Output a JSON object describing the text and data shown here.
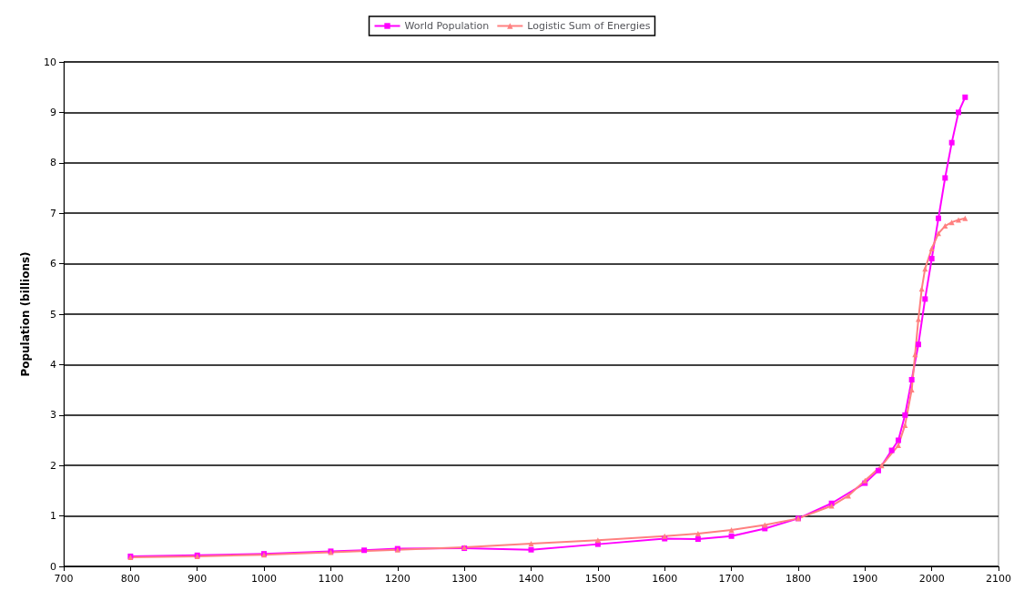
{
  "chart_data": {
    "type": "line",
    "ylabel": "Population (billions)",
    "xlim": [
      700,
      2100
    ],
    "xticks": [
      700,
      800,
      900,
      1000,
      1100,
      1200,
      1300,
      1400,
      1500,
      1600,
      1700,
      1800,
      1900,
      2000,
      2100
    ],
    "ylim": [
      0,
      10
    ],
    "yticks": [
      0,
      1,
      2,
      3,
      4,
      5,
      6,
      7,
      8,
      9,
      10
    ],
    "grid": "y",
    "legend": "top",
    "series": [
      {
        "name": "World Population",
        "color": "#ff00ff",
        "marker": "square",
        "x": [
          800,
          900,
          1000,
          1100,
          1150,
          1200,
          1300,
          1400,
          1500,
          1600,
          1650,
          1700,
          1750,
          1800,
          1850,
          1900,
          1920,
          1940,
          1950,
          1960,
          1970,
          1980,
          1990,
          2000,
          2010,
          2020,
          2030,
          2040,
          2050
        ],
        "values": [
          0.2,
          0.22,
          0.25,
          0.3,
          0.32,
          0.35,
          0.36,
          0.33,
          0.44,
          0.55,
          0.54,
          0.6,
          0.75,
          0.95,
          1.25,
          1.65,
          1.9,
          2.3,
          2.5,
          3.0,
          3.7,
          4.4,
          5.3,
          6.1,
          6.9,
          7.7,
          8.4,
          9.0,
          9.3
        ]
      },
      {
        "name": "Logistic Sum of Energies",
        "color": "#ff8080",
        "marker": "triangle",
        "x": [
          800,
          900,
          1000,
          1100,
          1200,
          1300,
          1400,
          1500,
          1600,
          1650,
          1700,
          1750,
          1800,
          1850,
          1875,
          1900,
          1925,
          1950,
          1960,
          1970,
          1975,
          1980,
          1985,
          1990,
          2000,
          2010,
          2020,
          2030,
          2040,
          2050
        ],
        "values": [
          0.18,
          0.2,
          0.23,
          0.28,
          0.33,
          0.38,
          0.45,
          0.52,
          0.6,
          0.65,
          0.72,
          0.82,
          0.95,
          1.2,
          1.4,
          1.7,
          2.0,
          2.4,
          2.8,
          3.5,
          4.2,
          4.9,
          5.5,
          5.9,
          6.3,
          6.6,
          6.75,
          6.82,
          6.87,
          6.9
        ]
      }
    ]
  }
}
